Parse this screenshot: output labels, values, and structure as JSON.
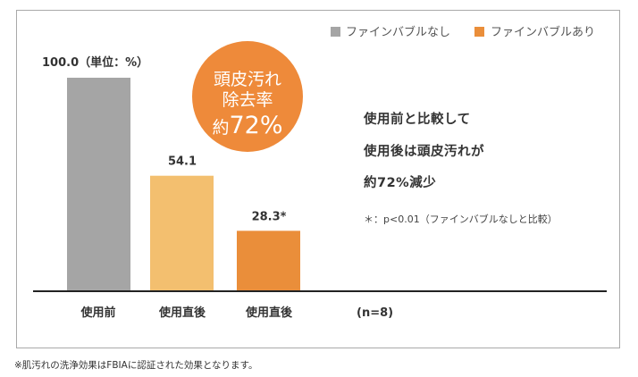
{
  "chart_data": {
    "type": "bar",
    "categories": [
      "使用前",
      "使用直後",
      "使用直後"
    ],
    "series": [
      {
        "name": "ファインバブルなし",
        "color": "#a5a5a5"
      },
      {
        "name": "ファインバブルあり",
        "color": "#ea8e3a"
      }
    ],
    "values": [
      100.0,
      54.1,
      28.3
    ],
    "bar_colors": [
      "#a5a5a5",
      "#f3bf6f",
      "#ea8e3a"
    ],
    "value_labels": [
      "100.0（単位：%）",
      "54.1",
      "28.3*"
    ],
    "ylim": [
      0,
      100
    ],
    "grid": false,
    "legend_position": "top-right",
    "n_label": "(n=8)"
  },
  "badge": {
    "line1": "頭皮汚れ",
    "line2": "除去率",
    "prefix": "約",
    "value": "72%",
    "color": "#ee8a3a"
  },
  "description": {
    "line1": "使用前と比較して",
    "line2": "使用後は頭皮汚れが",
    "line3": "約72%減少"
  },
  "significance_note": "＊：p<0.01（ファインバブルなしと比較）",
  "footnote": "※肌汚れの洗浄効果はFBIAに認証された効果となります。"
}
